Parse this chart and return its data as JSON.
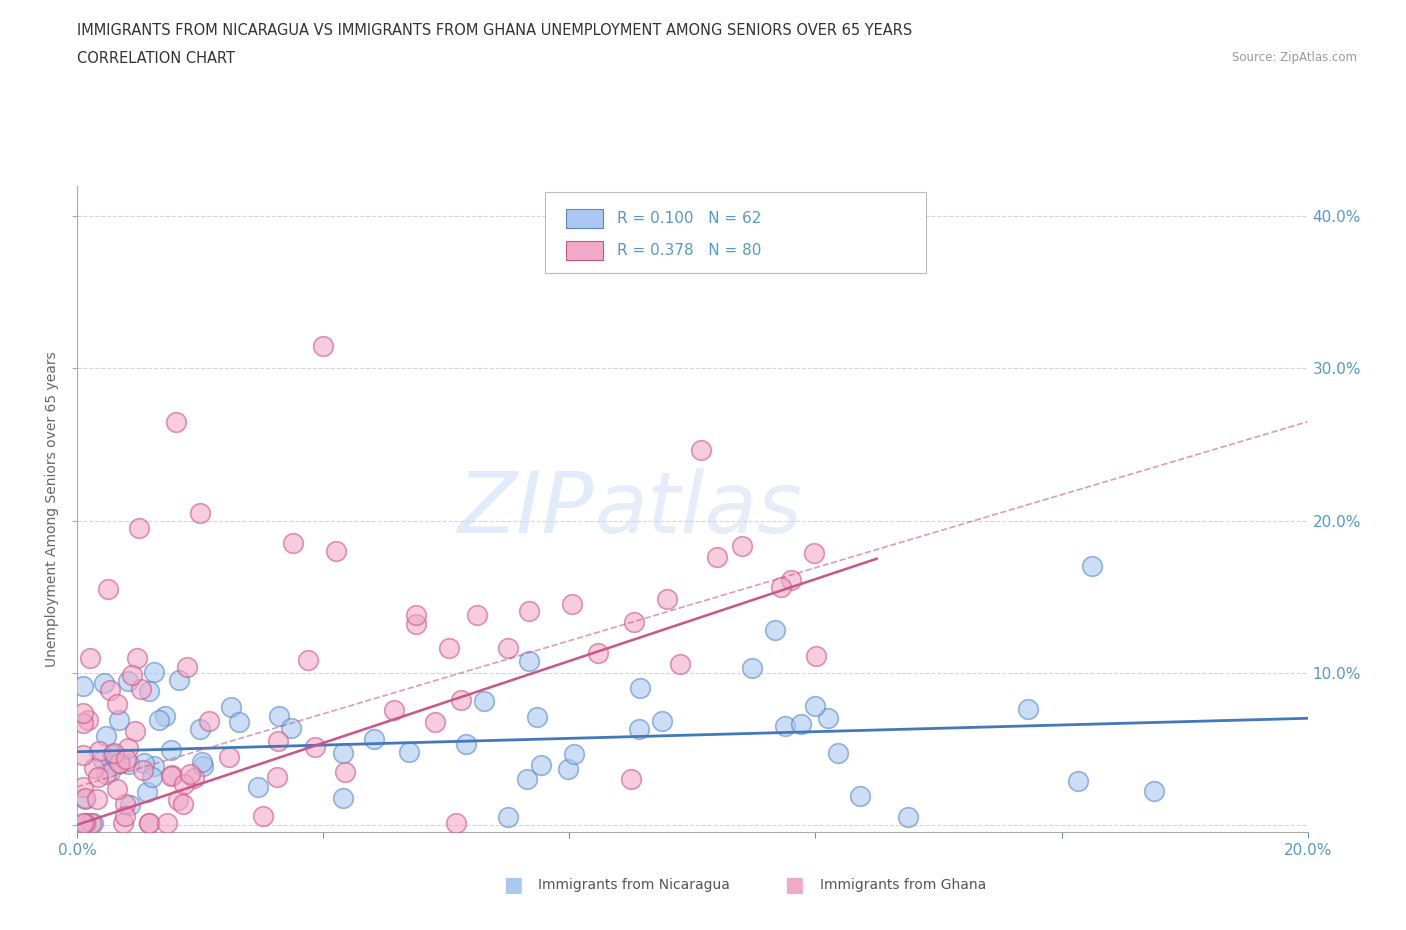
{
  "title_line1": "IMMIGRANTS FROM NICARAGUA VS IMMIGRANTS FROM GHANA UNEMPLOYMENT AMONG SENIORS OVER 65 YEARS",
  "title_line2": "CORRELATION CHART",
  "source_text": "Source: ZipAtlas.com",
  "ylabel": "Unemployment Among Seniors over 65 years",
  "watermark_zip": "ZIP",
  "watermark_atlas": "atlas",
  "xlim": [
    0.0,
    0.2
  ],
  "ylim": [
    -0.005,
    0.42
  ],
  "xticks": [
    0.0,
    0.04,
    0.08,
    0.12,
    0.16,
    0.2
  ],
  "xticklabels": [
    "0.0%",
    "",
    "",
    "",
    "",
    "20.0%"
  ],
  "yticks_right": [
    0.1,
    0.2,
    0.3,
    0.4
  ],
  "yticklabels_right": [
    "10.0%",
    "20.0%",
    "30.0%",
    "40.0%"
  ],
  "legend_r1": "R = 0.100",
  "legend_n1": "N = 62",
  "legend_r2": "R = 0.378",
  "legend_n2": "N = 80",
  "color_nicaragua": "#aac8f0",
  "color_ghana": "#f0aac8",
  "color_edge_nicaragua": "#5588cc",
  "color_edge_ghana": "#cc5588",
  "color_line_nicaragua": "#4477bb",
  "color_line_ghana": "#cc5588",
  "color_tick_blue": "#5599cc",
  "color_source": "#999999",
  "color_title": "#333333",
  "color_ylabel": "#666666",
  "color_grid": "#cccccc",
  "color_watermark_zip": "#c8ddf5",
  "color_watermark_atlas": "#c8d8f0",
  "line_nic_x0": 0.0,
  "line_nic_y0": 0.048,
  "line_nic_x1": 0.2,
  "line_nic_y1": 0.07,
  "line_ghana_solid_x0": 0.0,
  "line_ghana_solid_y0": 0.0,
  "line_ghana_solid_x1": 0.13,
  "line_ghana_solid_y1": 0.175,
  "line_ghana_dash_x0": 0.0,
  "line_ghana_dash_y0": 0.025,
  "line_ghana_dash_x1": 0.2,
  "line_ghana_dash_y1": 0.265
}
